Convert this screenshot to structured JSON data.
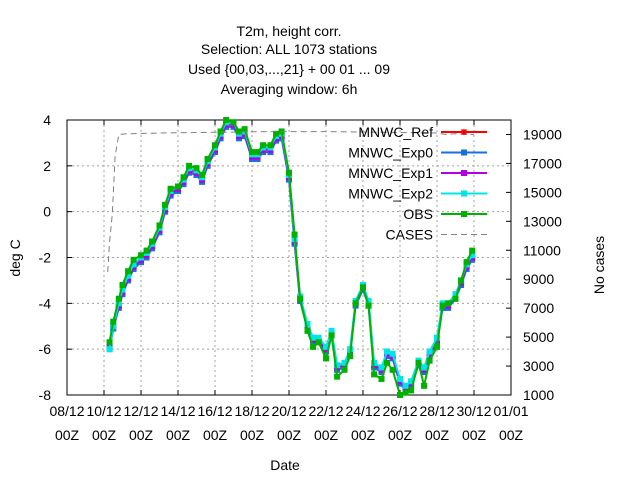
{
  "chart_data": {
    "type": "line",
    "title_lines": [
      "T2m, height corr.",
      "Selection: ALL    1073 stations",
      "Used {00,03,...,21} + 00 01 ... 09",
      "Averaging window:  6h"
    ],
    "xlabel": "Date",
    "ylabel": "deg C",
    "y2label": "No cases",
    "x_ticks": [
      {
        "line1": "08/12",
        "line2": "00Z"
      },
      {
        "line1": "10/12",
        "line2": "00Z"
      },
      {
        "line1": "12/12",
        "line2": "00Z"
      },
      {
        "line1": "14/12",
        "line2": "00Z"
      },
      {
        "line1": "16/12",
        "line2": "00Z"
      },
      {
        "line1": "18/12",
        "line2": "00Z"
      },
      {
        "line1": "20/12",
        "line2": "00Z"
      },
      {
        "line1": "22/12",
        "line2": "00Z"
      },
      {
        "line1": "24/12",
        "line2": "00Z"
      },
      {
        "line1": "26/12",
        "line2": "00Z"
      },
      {
        "line1": "28/12",
        "line2": "00Z"
      },
      {
        "line1": "30/12",
        "line2": "00Z"
      },
      {
        "line1": "01/01",
        "line2": "00Z"
      }
    ],
    "x_range_days": [
      0,
      24
    ],
    "ylim": [
      -8,
      4
    ],
    "y_ticks": [
      "-8",
      "-6",
      "-4",
      "-2",
      "0",
      "2",
      "4"
    ],
    "y2lim": [
      1000,
      20000
    ],
    "y2_ticks": [
      "1000",
      "3000",
      "5000",
      "7000",
      "9000",
      "11000",
      "13000",
      "15000",
      "17000",
      "19000"
    ],
    "grid": true,
    "legend_position": "top-right",
    "obs_x": [
      2.3,
      2.5,
      2.8,
      3.0,
      3.3,
      3.6,
      4.0,
      4.3,
      4.6,
      5.0,
      5.3,
      5.6,
      6.0,
      6.3,
      6.6,
      7.0,
      7.3,
      7.6,
      8.0,
      8.3,
      8.6,
      9.0,
      9.3,
      9.6,
      10.0,
      10.3,
      10.6,
      11.0,
      11.3,
      11.6,
      12.0,
      12.3,
      12.6,
      13.0,
      13.3,
      13.6,
      14.0,
      14.3,
      14.6,
      15.0,
      15.3,
      15.6,
      16.0,
      16.3,
      16.6,
      17.0,
      17.3,
      17.6,
      18.0,
      18.3,
      18.6,
      19.0,
      19.3,
      19.6,
      20.0,
      20.3,
      20.6,
      21.0,
      21.3,
      21.6,
      21.9
    ],
    "series": [
      {
        "name": "MNWC_Ref",
        "color": "#ff0000",
        "marker": "star",
        "values": [
          -5.9,
          -5.0,
          -4.1,
          -3.5,
          -2.9,
          -2.4,
          -2.1,
          -1.9,
          -1.5,
          -0.8,
          0.1,
          0.8,
          1.0,
          1.3,
          1.8,
          1.7,
          1.4,
          2.1,
          2.7,
          3.3,
          3.8,
          3.8,
          3.3,
          3.4,
          2.4,
          2.4,
          2.7,
          2.7,
          3.2,
          3.3,
          1.5,
          -1.3,
          -3.8,
          -5.0,
          -5.6,
          -5.6,
          -6.0,
          -5.3,
          -6.8,
          -6.7,
          -6.1,
          -4.0,
          -3.3,
          -4.0,
          -6.7,
          -6.9,
          -6.2,
          -6.3,
          -7.4,
          -7.7,
          -7.5,
          -6.6,
          -6.9,
          -6.2,
          -5.6,
          -4.1,
          -4.1,
          -3.7,
          -3.1,
          -2.4,
          -2.0
        ]
      },
      {
        "name": "MNWC_Exp0",
        "color": "#1a6fdc",
        "marker": "square",
        "values": [
          -6.0,
          -5.1,
          -4.2,
          -3.6,
          -3.0,
          -2.5,
          -2.2,
          -2.0,
          -1.6,
          -0.9,
          0.0,
          0.7,
          0.9,
          1.2,
          1.7,
          1.6,
          1.3,
          2.0,
          2.6,
          3.2,
          3.7,
          3.7,
          3.2,
          3.3,
          2.3,
          2.3,
          2.6,
          2.6,
          3.1,
          3.2,
          1.4,
          -1.4,
          -3.9,
          -5.1,
          -5.7,
          -5.7,
          -6.1,
          -5.4,
          -6.9,
          -6.8,
          -6.2,
          -4.1,
          -3.4,
          -4.1,
          -6.8,
          -7.0,
          -6.3,
          -6.4,
          -7.5,
          -7.8,
          -7.6,
          -6.7,
          -7.0,
          -6.3,
          -5.7,
          -4.2,
          -4.2,
          -3.8,
          -3.2,
          -2.5,
          -2.1
        ]
      },
      {
        "name": "MNWC_Exp1",
        "color": "#b200e6",
        "marker": "square",
        "values": [
          -5.9,
          -5.0,
          -4.1,
          -3.5,
          -2.9,
          -2.4,
          -2.1,
          -1.9,
          -1.5,
          -0.8,
          0.1,
          0.8,
          1.0,
          1.3,
          1.8,
          1.7,
          1.4,
          2.1,
          2.7,
          3.3,
          3.8,
          3.8,
          3.3,
          3.4,
          2.4,
          2.4,
          2.7,
          2.7,
          3.2,
          3.3,
          1.5,
          -1.3,
          -3.8,
          -5.0,
          -5.6,
          -5.6,
          -6.0,
          -5.3,
          -6.8,
          -6.7,
          -6.1,
          -4.0,
          -3.3,
          -4.0,
          -6.7,
          -6.9,
          -6.2,
          -6.3,
          -7.4,
          -7.7,
          -7.5,
          -6.6,
          -6.9,
          -6.2,
          -5.6,
          -4.1,
          -4.1,
          -3.7,
          -3.1,
          -2.4,
          -2.0
        ]
      },
      {
        "name": "MNWC_Exp2",
        "color": "#00e6e6",
        "marker": "square",
        "values": [
          -6.0,
          -5.0,
          -4.0,
          -3.4,
          -2.8,
          -2.3,
          -2.0,
          -1.8,
          -1.4,
          -0.7,
          0.2,
          0.9,
          1.1,
          1.4,
          1.9,
          1.8,
          1.5,
          2.2,
          2.8,
          3.4,
          3.9,
          3.9,
          3.4,
          3.5,
          2.5,
          2.5,
          2.8,
          2.8,
          3.3,
          3.4,
          1.6,
          -1.2,
          -3.7,
          -4.9,
          -5.5,
          -5.5,
          -5.9,
          -5.2,
          -6.7,
          -6.6,
          -6.0,
          -3.9,
          -3.2,
          -3.9,
          -6.6,
          -6.8,
          -6.1,
          -6.2,
          -7.3,
          -7.6,
          -7.4,
          -6.5,
          -6.8,
          -6.1,
          -5.5,
          -4.0,
          -4.0,
          -3.6,
          -3.0,
          -2.3,
          -1.9
        ]
      },
      {
        "name": "OBS",
        "color": "#00b200",
        "marker": "square",
        "values": [
          -5.7,
          -4.8,
          -3.8,
          -3.2,
          -2.6,
          -2.1,
          -1.9,
          -1.7,
          -1.3,
          -0.6,
          0.3,
          1.0,
          1.1,
          1.5,
          2.0,
          1.9,
          1.6,
          2.3,
          2.9,
          3.5,
          4.0,
          3.9,
          3.5,
          3.6,
          2.6,
          2.6,
          2.9,
          2.9,
          3.4,
          3.5,
          1.7,
          -1.0,
          -3.8,
          -5.2,
          -5.9,
          -5.7,
          -6.4,
          -5.4,
          -7.2,
          -6.9,
          -6.3,
          -4.0,
          -3.3,
          -4.1,
          -7.1,
          -7.3,
          -6.6,
          -6.9,
          -8.0,
          -7.9,
          -7.8,
          -6.6,
          -7.6,
          -6.5,
          -5.9,
          -4.1,
          -4.0,
          -3.8,
          -3.0,
          -2.2,
          -1.7
        ]
      },
      {
        "name": "CASES",
        "color": "#808080",
        "dash": true,
        "axis": "y2",
        "x": [
          2.2,
          2.3,
          2.45,
          2.6,
          2.8,
          3.2,
          5,
          8,
          11,
          14,
          17,
          20,
          20.5,
          21,
          21.5,
          22
        ],
        "values": [
          9500,
          11500,
          13500,
          17500,
          19000,
          19050,
          19100,
          19150,
          19200,
          19200,
          19150,
          19100,
          19000,
          19050,
          19000,
          19000
        ]
      }
    ]
  }
}
